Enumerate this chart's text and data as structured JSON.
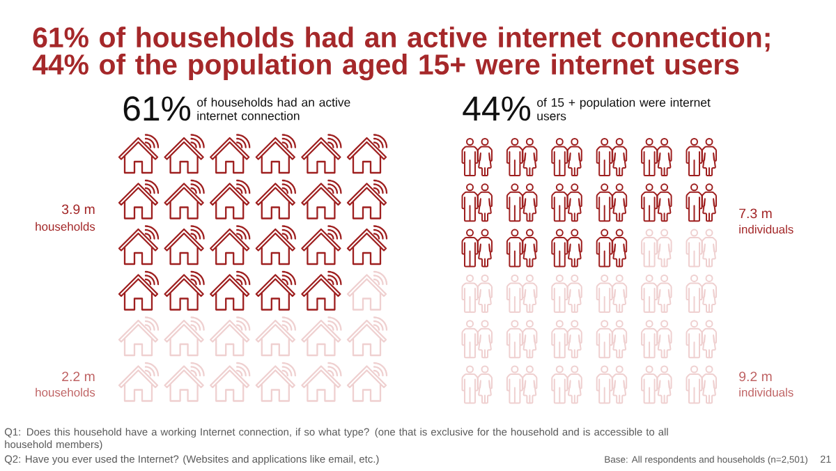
{
  "chart_data": [
    {
      "type": "other",
      "title": "61% of households had an active internet connection; 44% of the population aged 15+ were internet users",
      "subtitle": "of households had an active internet connection",
      "categories": [
        "households",
        "households"
      ],
      "values": [
        3.9,
        2.2
      ],
      "value_labels": [
        "3.9 m",
        "2.2 m"
      ],
      "colors": [
        "#9e1f1f",
        "#efd0d0"
      ],
      "annotations": [
        "61%",
        "Q1: Does this household have a working Internet connection, if so what type? (one that is exclusive for the household and is accessible to all household members)"
      ]
    },
    {
      "type": "other",
      "subtitle": "of 15 + population were internet users",
      "categories": [
        "individuals",
        "individuals"
      ],
      "values": [
        7.3,
        9.2
      ],
      "value_labels": [
        "7.3 m",
        "9.2 m"
      ],
      "colors": [
        "#9e1f1f",
        "#efd0d0"
      ],
      "annotations": [
        "44%",
        "Q2: Have you ever used the Internet? (Websites and applications like email, etc.)",
        "Base: All respondents and households (n=2,501)",
        "21"
      ]
    }
  ]
}
